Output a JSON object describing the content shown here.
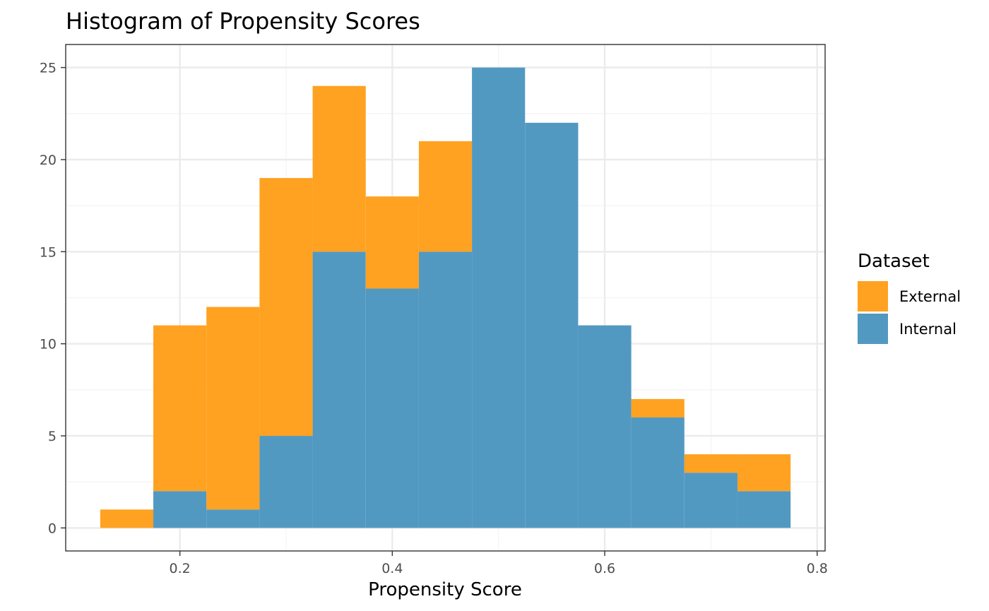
{
  "colors": {
    "external": "#ffa221",
    "internal": "#5299c2",
    "grid_major": "#ebebeb",
    "grid_minor": "#f3f3f3",
    "panel_border": "#333333"
  },
  "chart_data": {
    "type": "bar",
    "subtype": "stacked-histogram",
    "title": "Histogram of Propensity Scores",
    "xlabel": "Propensity Score",
    "ylabel": "",
    "xlim": [
      0.0925,
      0.8075
    ],
    "ylim": [
      -1.25,
      26.25
    ],
    "x_ticks": [
      0.2,
      0.4,
      0.6,
      0.8
    ],
    "x_tick_labels": [
      "0.2",
      "0.4",
      "0.6",
      "0.8"
    ],
    "y_ticks": [
      0,
      5,
      10,
      15,
      20,
      25
    ],
    "y_tick_labels": [
      "0",
      "5",
      "10",
      "15",
      "20",
      "25"
    ],
    "grid": true,
    "bin_width": 0.05,
    "bin_centers": [
      0.15,
      0.2,
      0.25,
      0.3,
      0.35,
      0.4,
      0.45,
      0.5,
      0.55,
      0.6,
      0.65,
      0.7,
      0.75
    ],
    "series": [
      {
        "name": "Internal",
        "values": [
          0,
          2,
          1,
          5,
          15,
          13,
          15,
          25,
          22,
          11,
          6,
          3,
          2
        ]
      },
      {
        "name": "External",
        "values": [
          1,
          9,
          11,
          14,
          9,
          5,
          6,
          0,
          0,
          0,
          1,
          1,
          2
        ]
      }
    ],
    "legend": {
      "title": "Dataset",
      "position": "right",
      "entries": [
        "External",
        "Internal"
      ]
    }
  }
}
